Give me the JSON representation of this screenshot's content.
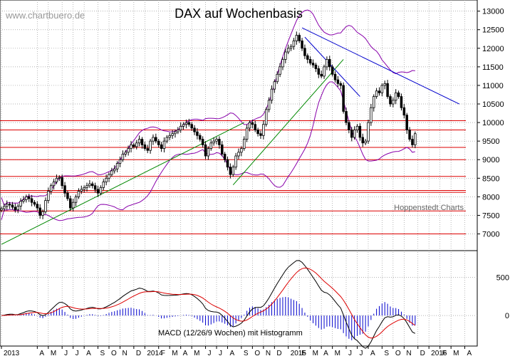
{
  "chart_data": [
    {
      "type": "candlestick",
      "title": "DAX auf Wochenbasis",
      "watermark": "www.chartbuero.de",
      "source_note": "Hoppenstedt Charts",
      "yaxis_position": "right",
      "ylim": [
        6550,
        13300
      ],
      "y_ticks": [
        13000,
        12500,
        12000,
        11500,
        11000,
        10500,
        10000,
        9500,
        9000,
        8500,
        8000,
        7500,
        7000
      ],
      "horizontal_lines": [
        10050,
        9800,
        9330,
        9000,
        8550,
        8170,
        8120,
        7620,
        7000
      ],
      "colors": {
        "background": "#ffffff",
        "grid": "#9a9a9a",
        "candle_up": "#ffffff",
        "candle_down": "#000000",
        "bollinger": "#8800aa",
        "support_resistance": "#dd0000",
        "uptrend": "#008800",
        "downtrend": "#0000cc"
      },
      "weekly_close": [
        7680,
        7740,
        7800,
        7780,
        7720,
        7650,
        7750,
        7880,
        7920,
        8000,
        7950,
        7850,
        7800,
        7700,
        7500,
        7600,
        7900,
        8150,
        8300,
        8400,
        8500,
        8520,
        8300,
        8100,
        7950,
        7700,
        7850,
        8000,
        8150,
        8200,
        8250,
        8300,
        8350,
        8300,
        8200,
        8100,
        8250,
        8400,
        8500,
        8600,
        8700,
        8750,
        8900,
        9000,
        9150,
        9200,
        9300,
        9400,
        9350,
        9450,
        9550,
        9400,
        9300,
        9250,
        9500,
        9600,
        9500,
        9400,
        9300,
        9500,
        9600,
        9650,
        9700,
        9750,
        9800,
        9900,
        9950,
        10000,
        9950,
        9850,
        9750,
        9650,
        9550,
        9400,
        9100,
        9300,
        9450,
        9500,
        9550,
        9400,
        9150,
        9000,
        8800,
        8600,
        8800,
        9100,
        9200,
        9300,
        9550,
        9850,
        10000,
        9950,
        9800,
        9700,
        9650,
        9950,
        10350,
        10600,
        10900,
        11100,
        11300,
        11500,
        11700,
        11900,
        12000,
        12050,
        12200,
        12350,
        12200,
        12000,
        11800,
        11700,
        11600,
        11550,
        11450,
        11300,
        11250,
        11500,
        11700,
        11500,
        11300,
        11150,
        11050,
        11000,
        10300,
        10000,
        9800,
        9600,
        9800,
        9900,
        9600,
        9450,
        9500,
        10000,
        10400,
        10700,
        10850,
        10800,
        11000,
        11050,
        10700,
        10500,
        10600,
        10800,
        10700,
        10400,
        10200,
        9800,
        9550,
        9400,
        9700
      ],
      "macd_label": "MACD (12/26/9 Wochen) mit Histogramm",
      "macd_ylim": [
        -400,
        850
      ],
      "macd_ticks": [
        500,
        0
      ],
      "macd_line_color": "#000000",
      "signal_line_color": "#dd0000",
      "histogram_color": "#0000cc",
      "x_tick_labels": [
        {
          "label": "2013",
          "week": 0
        },
        {
          "label": "A",
          "week": 13
        },
        {
          "label": "M",
          "week": 17
        },
        {
          "label": "J",
          "week": 22
        },
        {
          "label": "J",
          "week": 26
        },
        {
          "label": "A",
          "week": 30
        },
        {
          "label": "S",
          "week": 35
        },
        {
          "label": "O",
          "week": 39
        },
        {
          "label": "N",
          "week": 43
        },
        {
          "label": "D",
          "week": 48
        },
        {
          "label": "2014",
          "week": 52
        },
        {
          "label": "F",
          "week": 57
        },
        {
          "label": "M",
          "week": 61
        },
        {
          "label": "A",
          "week": 65
        },
        {
          "label": "M",
          "week": 69
        },
        {
          "label": "J",
          "week": 74
        },
        {
          "label": "J",
          "week": 78
        },
        {
          "label": "A",
          "week": 82
        },
        {
          "label": "S",
          "week": 87
        },
        {
          "label": "O",
          "week": 91
        },
        {
          "label": "N",
          "week": 95
        },
        {
          "label": "D",
          "week": 99
        },
        {
          "label": "2015",
          "week": 104
        },
        {
          "label": "F",
          "week": 108
        },
        {
          "label": "M",
          "week": 112
        },
        {
          "label": "A",
          "week": 116
        },
        {
          "label": "M",
          "week": 120
        },
        {
          "label": "J",
          "week": 125
        },
        {
          "label": "J",
          "week": 129
        },
        {
          "label": "A",
          "week": 133
        },
        {
          "label": "S",
          "week": 138
        },
        {
          "label": "O",
          "week": 142
        },
        {
          "label": "N",
          "week": 146
        },
        {
          "label": "D",
          "week": 151
        },
        {
          "label": "2016",
          "week": 155
        },
        {
          "label": "F",
          "week": 159
        },
        {
          "label": "M",
          "week": 163
        },
        {
          "label": "A",
          "week": 168
        }
      ],
      "x_range_weeks": [
        0,
        172
      ]
    }
  ]
}
